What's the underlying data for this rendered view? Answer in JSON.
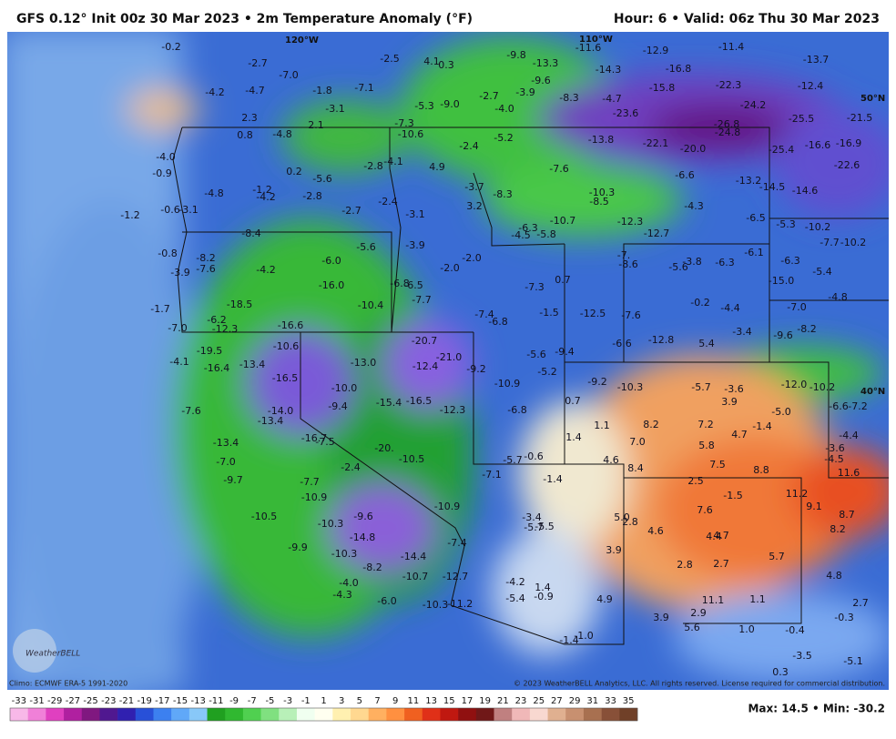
{
  "header": {
    "title": "GFS 0.12° Init 00z 30 Mar 2023 • 2m Temperature Anomaly (°F)",
    "valid": "Hour: 6 • Valid: 06z Thu 30 Mar 2023"
  },
  "footer": {
    "climo": "Climo: ECMWF ERA-5 1991-2020",
    "copyright": "© 2023 WeatherBELL Analytics, LLC. All rights reserved. License required for commercial distribution.",
    "maxmin": "Max: 14.5 • Min: -30.2",
    "logo": "WeatherBELL"
  },
  "map": {
    "graticule": [
      "120°W",
      "110°W",
      "50°N",
      "40°N"
    ],
    "labels": [
      "-0.2",
      "-2.7",
      "-7.0",
      "-4.2",
      "-4.7",
      "-1.8",
      "-7.1",
      "-2.5",
      "4.1",
      "0.3",
      "-9.8",
      "-13.3",
      "-9.6",
      "-11.6",
      "-14.3",
      "-12.9",
      "-16.8",
      "-11.4",
      "-13.7",
      "-15.8",
      "-22.3",
      "-12.4",
      "-24.2",
      "-25.5",
      "-21.5",
      "-23.6",
      "-26.8",
      "-24.8",
      "-4.7",
      "-8.3",
      "-2.7",
      "-3.9",
      "-4.0",
      "-5.3",
      "-9.0",
      "-3.1",
      "2.3",
      "2.1",
      "0.8",
      "-4.8",
      "-7.3",
      "-10.6",
      "-5.2",
      "-2.4",
      "-13.8",
      "-22.1",
      "-20.0",
      "-25.4",
      "-16.6",
      "-16.9",
      "-22.6",
      "-4.1",
      "-2.8",
      "4.9",
      "-7.6",
      "-6.6",
      "-13.2",
      "-14.5",
      "-14.6",
      "-4.0",
      "-0.9",
      "0.2",
      "-5.6",
      "-4.8",
      "-1.2",
      "-4.2",
      "-2.8",
      "-2.4",
      "-3.7",
      "-8.3",
      "-10.3",
      "-8.5",
      "3.2",
      "-1.2",
      "-0.6",
      "-3.1",
      "-2.7",
      "-3.1",
      "-10.7",
      "-12.3",
      "-4.3",
      "-6.5",
      "-6.3",
      "-4.5",
      "-5.8",
      "-12.7",
      "-5.3",
      "-10.2",
      "-7.7",
      "-10.2",
      "-8.4",
      "-5.6",
      "-3.9",
      "-6.1",
      "-0.8",
      "-8.2",
      "-7.6",
      "-3.9",
      "-4.2",
      "-6.0",
      "-2.0",
      "-2.0",
      "-7.",
      "-8.6",
      "-5.6",
      "-3.8",
      "-6.3",
      "-6.3",
      "-5.4",
      "-16.0",
      "-6.8",
      "-6.5",
      "-7.3",
      "0.7",
      "-15.0",
      "-7.7",
      "-10.4",
      "-18.5",
      "-0.2",
      "-4.4",
      "-4.8",
      "-1.7",
      "-7.4",
      "-6.8",
      "-1.5",
      "-12.5",
      "-7.6",
      "-7.0",
      "-8.2",
      "-6.2",
      "-16.6",
      "-7.0",
      "-12.3",
      "-12.8",
      "5.4",
      "-3.4",
      "-9.6",
      "-10.6",
      "-20.7",
      "-19.5",
      "-21.0",
      "-6.6",
      "-5.6",
      "-9.4",
      "-4.1",
      "-13.4",
      "-13.0",
      "-12.4",
      "-9.2",
      "-5.2",
      "-16.4",
      "-16.5",
      "-10.0",
      "-10.9",
      "-9.2",
      "-10.3",
      "-5.7",
      "-3.6",
      "-12.0",
      "-10.2",
      "0.7",
      "3.9",
      "-6.6",
      "-7.2",
      "-15.4",
      "-16.5",
      "-9.4",
      "-7.6",
      "-14.0",
      "-12.3",
      "-6.8",
      "-5.0",
      "-13.4",
      "1.1",
      "8.2",
      "7.2",
      "-1.4",
      "4.7",
      "-4.4",
      "-16.7",
      "-7.5",
      "1.4",
      "7.0",
      "5.8",
      "-20.",
      "-3.6",
      "-13.4",
      "-10.5",
      "-5.7",
      "-0.6",
      "4.6",
      "-4.5",
      "-7.0",
      "-2.4",
      "8.4",
      "7.5",
      "8.8",
      "11.6",
      "-7.1",
      "-1.4",
      "2.5",
      "-9.7",
      "-7.7",
      "11.2",
      "-1.5",
      "-10.9",
      "-10.9",
      "9.1",
      "8.7",
      "7.6",
      "-10.5",
      "-9.6",
      "-3.4",
      "5.0",
      "2.8",
      "-10.3",
      "-5.7",
      "-5.5",
      "4.6",
      "8.2",
      "4.4",
      "4.7",
      "-14.8",
      "-7.4",
      "-9.9",
      "3.9",
      "5.7",
      "-10.3",
      "-14.4",
      "2.8",
      "2.7",
      "-8.2",
      "-12.7",
      "-10.7",
      "4.8",
      "-4.0",
      "-4.2",
      "1.4",
      "-4.3",
      "-5.4",
      "-0.9",
      "4.9",
      "11.1",
      "1.1",
      "-6.0",
      "-10.3",
      "-11.2",
      "2.7",
      "2.9",
      "3.9",
      "-0.3",
      "5.6",
      "1.0",
      "-0.4",
      "-1.0",
      "-1.4",
      "-3.5",
      "-5.1",
      "0.3"
    ]
  },
  "legend": {
    "labels": [
      "-33",
      "-31",
      "-29",
      "-27",
      "-25",
      "-23",
      "-21",
      "-19",
      "-17",
      "-15",
      "-13",
      "-11",
      "-9",
      "-7",
      "-5",
      "-3",
      "-1",
      "1",
      "3",
      "5",
      "7",
      "9",
      "11",
      "13",
      "15",
      "17",
      "19",
      "21",
      "23",
      "25",
      "27",
      "29",
      "31",
      "33",
      "35"
    ],
    "colors": [
      "#f8b8e8",
      "#f080d8",
      "#e040c0",
      "#b020a0",
      "#801880",
      "#501890",
      "#3020b0",
      "#2850d8",
      "#3c80f0",
      "#60a8f8",
      "#88c8f8",
      "#20a020",
      "#30b830",
      "#50d050",
      "#80e080",
      "#b8f0b8",
      "#f0fff0",
      "#fffff0",
      "#fff0b0",
      "#ffd890",
      "#ffb060",
      "#ff9040",
      "#f06020",
      "#e03018",
      "#c01810",
      "#901010",
      "#701818",
      "#c08080",
      "#f0b8b8",
      "#f8d8d0",
      "#e0b090",
      "#c89070",
      "#a87050",
      "#885038",
      "#704028"
    ]
  }
}
